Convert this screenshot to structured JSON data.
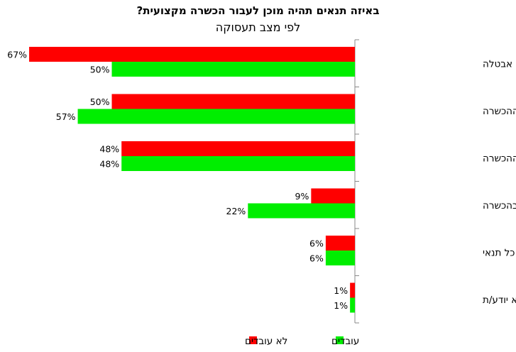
{
  "chart_data": {
    "type": "bar",
    "orientation": "horizontal",
    "title": "באיזה תנאים תהיה מוכן לעבור הכשרה מקצועית?",
    "subtitle": "לפי מצב תעסוקה",
    "categories": [
      "דמי קיום בגובה דמי אבטלה",
      "אפשרות בחירת תחום ההכשרה",
      "עבודה מובטחת בתחום ההכשרה",
      "מעורבות מעסיק בהכשרה",
      "מוכנים ללא כל תנאי",
      "לא יודע/ת"
    ],
    "series": [
      {
        "name": "לא עובדים",
        "color": "#ff0000",
        "values": [
          67,
          50,
          48,
          9,
          6,
          1
        ]
      },
      {
        "name": "עובדים",
        "color": "#00ee00",
        "values": [
          50,
          57,
          48,
          22,
          6,
          1
        ]
      }
    ],
    "value_suffix": "%",
    "xlim": [
      0,
      100
    ],
    "legend_position": "bottom",
    "grid": false
  }
}
